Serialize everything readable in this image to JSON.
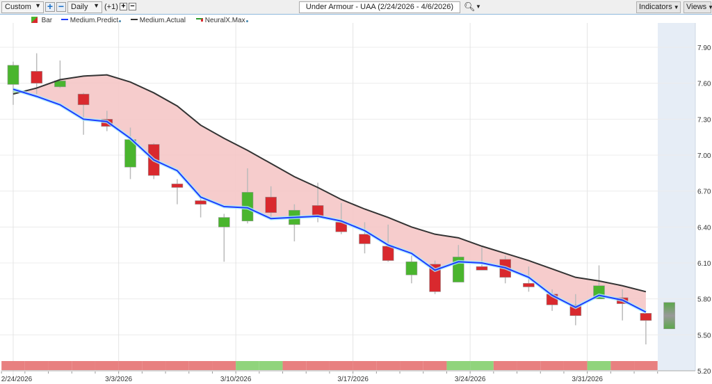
{
  "toolbar": {
    "preset": "Custom",
    "interval": "Daily",
    "offset": "(+1)",
    "title": "Under Armour - UAA (2/24/2026 - 4/6/2026)",
    "indicators": "Indicators",
    "views": "Views"
  },
  "legend": {
    "bar": "Bar",
    "predict": "Medium.Predict",
    "actual": "Medium.Actual",
    "neural": "NeuralX.Max"
  },
  "colors": {
    "up": "#4ab52e",
    "down": "#d9292e",
    "predict": "#1e3cff",
    "actual": "#333333",
    "band": "#f5c6c6",
    "signal_red": "#e88080",
    "signal_green": "#90d47c",
    "forecast_bg": "#e6edf6"
  },
  "chart_data": {
    "type": "candlestick",
    "ylim": [
      5.2,
      7.9
    ],
    "yticks": [
      "7.90",
      "7.60",
      "7.30",
      "7.00",
      "6.70",
      "6.40",
      "6.10",
      "5.80",
      "5.50",
      "5.20"
    ],
    "xlabels": [
      {
        "label": "2/24/2026",
        "pos": 0
      },
      {
        "label": "3/3/2026",
        "pos": 4.5
      },
      {
        "label": "3/10/2026",
        "pos": 9.5
      },
      {
        "label": "3/17/2026",
        "pos": 14.5
      },
      {
        "label": "3/24/2026",
        "pos": 19.5
      },
      {
        "label": "3/31/2026",
        "pos": 24.5
      }
    ],
    "ohlc": [
      [
        7.59,
        7.78,
        7.42,
        7.75
      ],
      [
        7.7,
        7.85,
        7.51,
        7.6
      ],
      [
        7.57,
        7.79,
        7.56,
        7.62
      ],
      [
        7.51,
        7.52,
        7.17,
        7.42
      ],
      [
        7.3,
        7.37,
        7.2,
        7.24
      ],
      [
        6.9,
        7.23,
        6.8,
        7.13
      ],
      [
        7.09,
        7.1,
        6.8,
        6.83
      ],
      [
        6.76,
        6.8,
        6.59,
        6.73
      ],
      [
        6.62,
        6.65,
        6.48,
        6.59
      ],
      [
        6.4,
        6.51,
        6.11,
        6.48
      ],
      [
        6.45,
        6.89,
        6.43,
        6.69
      ],
      [
        6.65,
        6.74,
        6.48,
        6.52
      ],
      [
        6.42,
        6.59,
        6.28,
        6.54
      ],
      [
        6.58,
        6.77,
        6.44,
        6.49
      ],
      [
        6.44,
        6.6,
        6.34,
        6.36
      ],
      [
        6.34,
        6.44,
        6.18,
        6.26
      ],
      [
        6.24,
        6.42,
        6.11,
        6.12
      ],
      [
        6.0,
        6.16,
        5.93,
        6.11
      ],
      [
        6.09,
        6.12,
        5.84,
        5.86
      ],
      [
        5.94,
        6.25,
        5.94,
        6.15
      ],
      [
        6.07,
        6.23,
        6.04,
        6.04
      ],
      [
        6.13,
        6.16,
        5.93,
        5.98
      ],
      [
        5.93,
        6.07,
        5.86,
        5.9
      ],
      [
        5.84,
        5.88,
        5.7,
        5.75
      ],
      [
        5.75,
        5.84,
        5.58,
        5.66
      ],
      [
        5.8,
        6.08,
        5.8,
        5.91
      ],
      [
        5.81,
        5.88,
        5.62,
        5.76
      ],
      [
        5.68,
        5.68,
        5.42,
        5.62
      ]
    ],
    "forecast": [
      5.55,
      5.77
    ],
    "predict": [
      7.55,
      7.49,
      7.42,
      7.3,
      7.28,
      7.14,
      6.96,
      6.87,
      6.65,
      6.57,
      6.56,
      6.47,
      6.48,
      6.49,
      6.45,
      6.37,
      6.25,
      6.18,
      6.04,
      6.11,
      6.1,
      6.06,
      5.98,
      5.83,
      5.73,
      5.83,
      5.79,
      5.69
    ],
    "actual": [
      7.51,
      7.56,
      7.63,
      7.66,
      7.67,
      7.61,
      7.52,
      7.41,
      7.25,
      7.14,
      7.04,
      6.93,
      6.82,
      6.73,
      6.63,
      6.55,
      6.48,
      6.4,
      6.34,
      6.31,
      6.24,
      6.18,
      6.12,
      6.05,
      5.98,
      5.95,
      5.91,
      5.86
    ],
    "signal": [
      "red",
      "red",
      "red",
      "red",
      "red",
      "red",
      "red",
      "red",
      "red",
      "red",
      "green",
      "green",
      "red",
      "red",
      "red",
      "red",
      "red",
      "red",
      "red",
      "green",
      "green",
      "red",
      "red",
      "red",
      "red",
      "green",
      "red",
      "red"
    ]
  }
}
